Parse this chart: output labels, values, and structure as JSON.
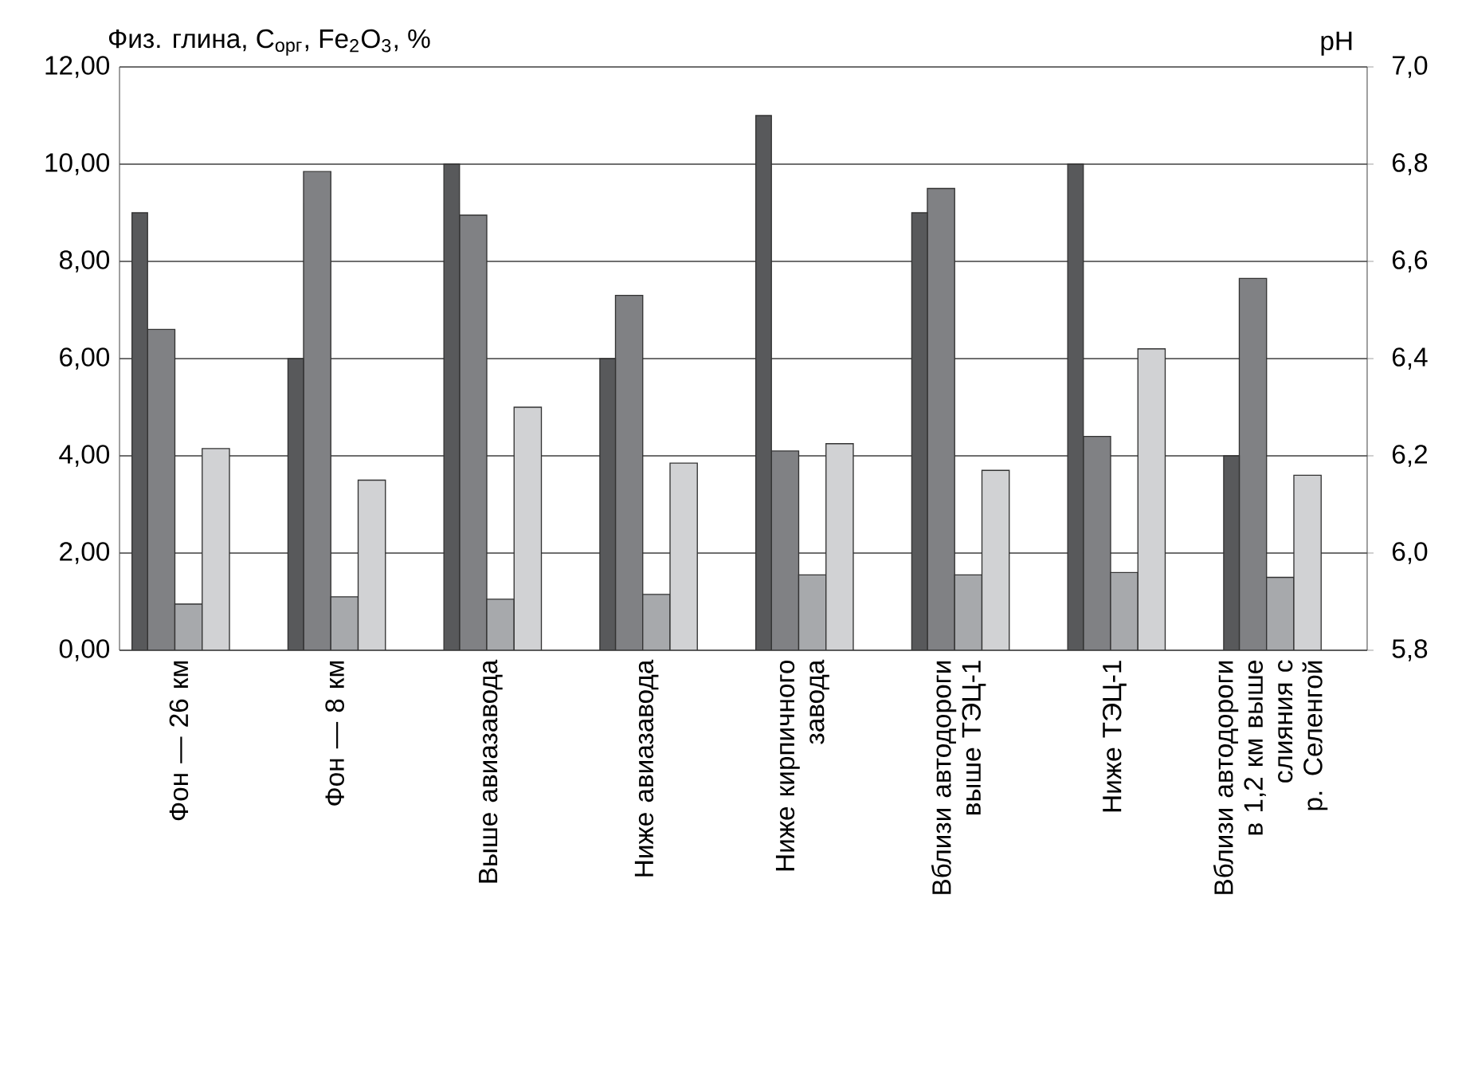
{
  "chart_data": {
    "type": "bar",
    "ylabel": "Физ. глина, C$_{орг}$, Fe$_{2}$O$_{3}$, %",
    "y2label": "pH",
    "categories": [
      "Фон — 26 км",
      "Фон — 8 км",
      "Выше авиазавода",
      "Ниже авиазавода",
      "Ниже кирпичного завода",
      "Вблизи автодороги выше ТЭЦ-1",
      "Ниже ТЭЦ-1",
      "Вблизи автодороги в 1,2 км выше слияния с р. Селенгой"
    ],
    "series": [
      {
        "color": "#58595b",
        "axis": "y2",
        "values": [
          6.7,
          6.4,
          6.8,
          6.4,
          6.9,
          6.7,
          6.8,
          6.2
        ]
      },
      {
        "color": "#808184",
        "values": [
          6.6,
          9.85,
          8.95,
          7.3,
          4.1,
          9.5,
          4.4,
          7.65
        ]
      },
      {
        "color": "#a7a9ac",
        "values": [
          0.95,
          1.1,
          1.05,
          1.15,
          1.55,
          1.55,
          1.6,
          1.5
        ]
      },
      {
        "color": "#d1d2d4",
        "values": [
          4.15,
          3.5,
          5.0,
          3.85,
          4.25,
          3.7,
          6.2,
          3.6
        ]
      }
    ],
    "ylim": [
      0,
      12
    ],
    "yticks": [
      {
        "value": 0,
        "label": "0,00"
      },
      {
        "value": 2,
        "label": "2,00"
      },
      {
        "value": 4,
        "label": "4,00"
      },
      {
        "value": 6,
        "label": "6,00"
      },
      {
        "value": 8,
        "label": "8,00"
      },
      {
        "value": 10,
        "label": "10,00"
      },
      {
        "value": 12,
        "label": "12,00"
      }
    ],
    "y2lim": [
      5.8,
      7.0
    ],
    "y2ticks": [
      {
        "value": 5.8,
        "label": "5,8"
      },
      {
        "value": 6.0,
        "label": "6,0"
      },
      {
        "value": 6.2,
        "label": "6,2"
      },
      {
        "value": 6.4,
        "label": "6,4"
      },
      {
        "value": 6.6,
        "label": "6,6"
      },
      {
        "value": 6.8,
        "label": "6,8"
      },
      {
        "value": 7.0,
        "label": "7,0"
      }
    ],
    "grid": "y"
  }
}
